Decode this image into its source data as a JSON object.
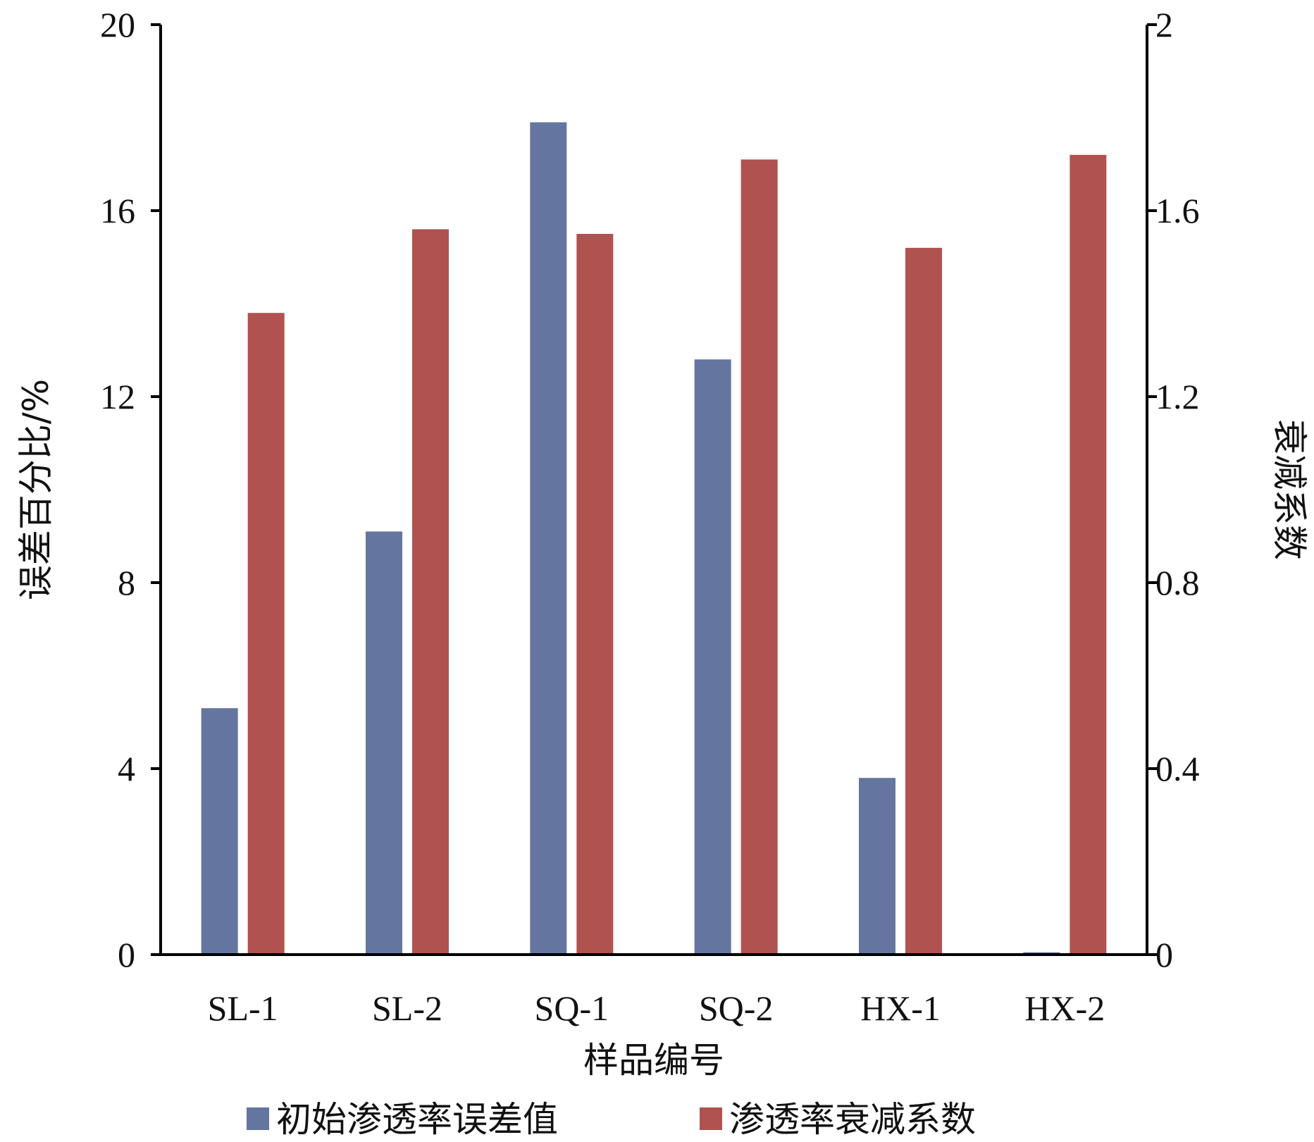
{
  "chart_data": {
    "type": "bar",
    "categories": [
      "SL-1",
      "SL-2",
      "SQ-1",
      "SQ-2",
      "HX-1",
      "HX-2"
    ],
    "xlabel": "样品编号",
    "ylabel_left": "误差百分比/%",
    "ylabel_right": "衰减系数",
    "ylim_left": [
      0,
      20
    ],
    "ylim_right": [
      0,
      2
    ],
    "yticks_left": [
      "0",
      "4",
      "8",
      "12",
      "16",
      "20"
    ],
    "yticks_right": [
      "0",
      "0.4",
      "0.8",
      "1.2",
      "1.6",
      "2"
    ],
    "grid": false,
    "legend_position": "bottom",
    "series": [
      {
        "name": "初始渗透率误差值",
        "axis": "left",
        "color": "#64759f",
        "values": [
          5.3,
          9.1,
          17.9,
          12.8,
          3.8,
          0.05
        ]
      },
      {
        "name": "渗透率衰减系数",
        "axis": "right",
        "color": "#b05250",
        "values": [
          1.38,
          1.56,
          1.55,
          1.71,
          1.52,
          1.72
        ]
      }
    ]
  }
}
